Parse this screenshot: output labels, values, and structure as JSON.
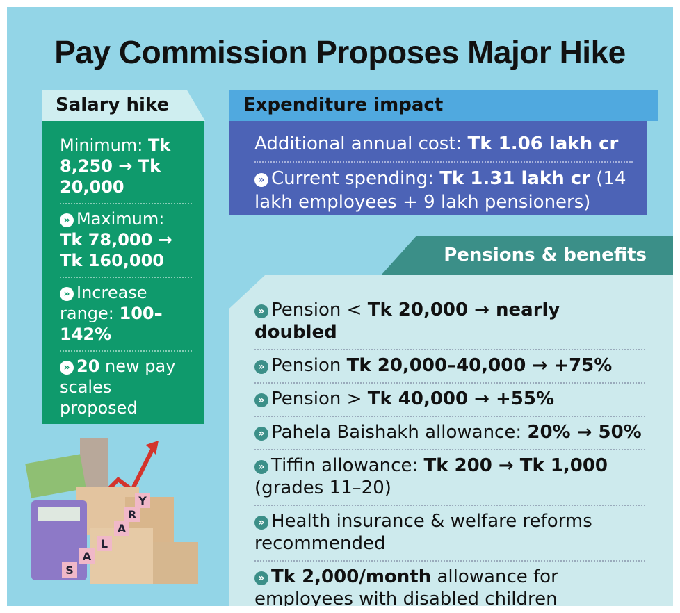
{
  "title": "Pay Commission Proposes Major Hike",
  "salary_hike": {
    "heading": "Salary hike",
    "items": [
      [
        {
          "text": "Minimum: "
        },
        {
          "text": "Tk 8,250 → Tk 20,000",
          "bold": true
        }
      ],
      [
        {
          "text": "Maximum: "
        },
        {
          "text": "Tk 78,000 → Tk 160,000",
          "bold": true
        }
      ],
      [
        {
          "text": "Increase range: "
        },
        {
          "text": "100–142%",
          "bold": true
        }
      ],
      [
        {
          "text": "20",
          "bold": true
        },
        {
          "text": " new pay scales proposed"
        }
      ]
    ]
  },
  "expenditure_impact": {
    "heading": "Expenditure impact",
    "items": [
      [
        {
          "text": "Additional annual cost: "
        },
        {
          "text": "Tk 1.06 lakh cr",
          "bold": true
        }
      ],
      [
        {
          "text": "Current spending: "
        },
        {
          "text": "Tk 1.31 lakh cr",
          "bold": true
        },
        {
          "text": " (14 lakh employees + 9 lakh pensioners)"
        }
      ]
    ]
  },
  "pensions_benefits": {
    "heading": "Pensions & benefits",
    "items": [
      [
        {
          "text": "Pension < "
        },
        {
          "text": "Tk 20,000 → nearly doubled",
          "bold": true
        }
      ],
      [
        {
          "text": "Pension "
        },
        {
          "text": "Tk 20,000–40,000 → +75%",
          "bold": true
        }
      ],
      [
        {
          "text": "Pension > "
        },
        {
          "text": "Tk 40,000 → +55%",
          "bold": true
        }
      ],
      [
        {
          "text": "Pahela Baishakh allowance: "
        },
        {
          "text": "20% → 50%",
          "bold": true
        }
      ],
      [
        {
          "text": "Tiffin allowance: "
        },
        {
          "text": "Tk 200 → Tk 1,000",
          "bold": true
        },
        {
          "text": " (grades 11–20)"
        }
      ],
      [
        {
          "text": "Health insurance & welfare reforms recommended"
        }
      ],
      [
        {
          "text": "Tk 2,000/month",
          "bold": true
        },
        {
          "text": " allowance for employees with disabled children"
        }
      ]
    ]
  },
  "illustration_letters": [
    "S",
    "A",
    "L",
    "A",
    "R",
    "Y"
  ]
}
